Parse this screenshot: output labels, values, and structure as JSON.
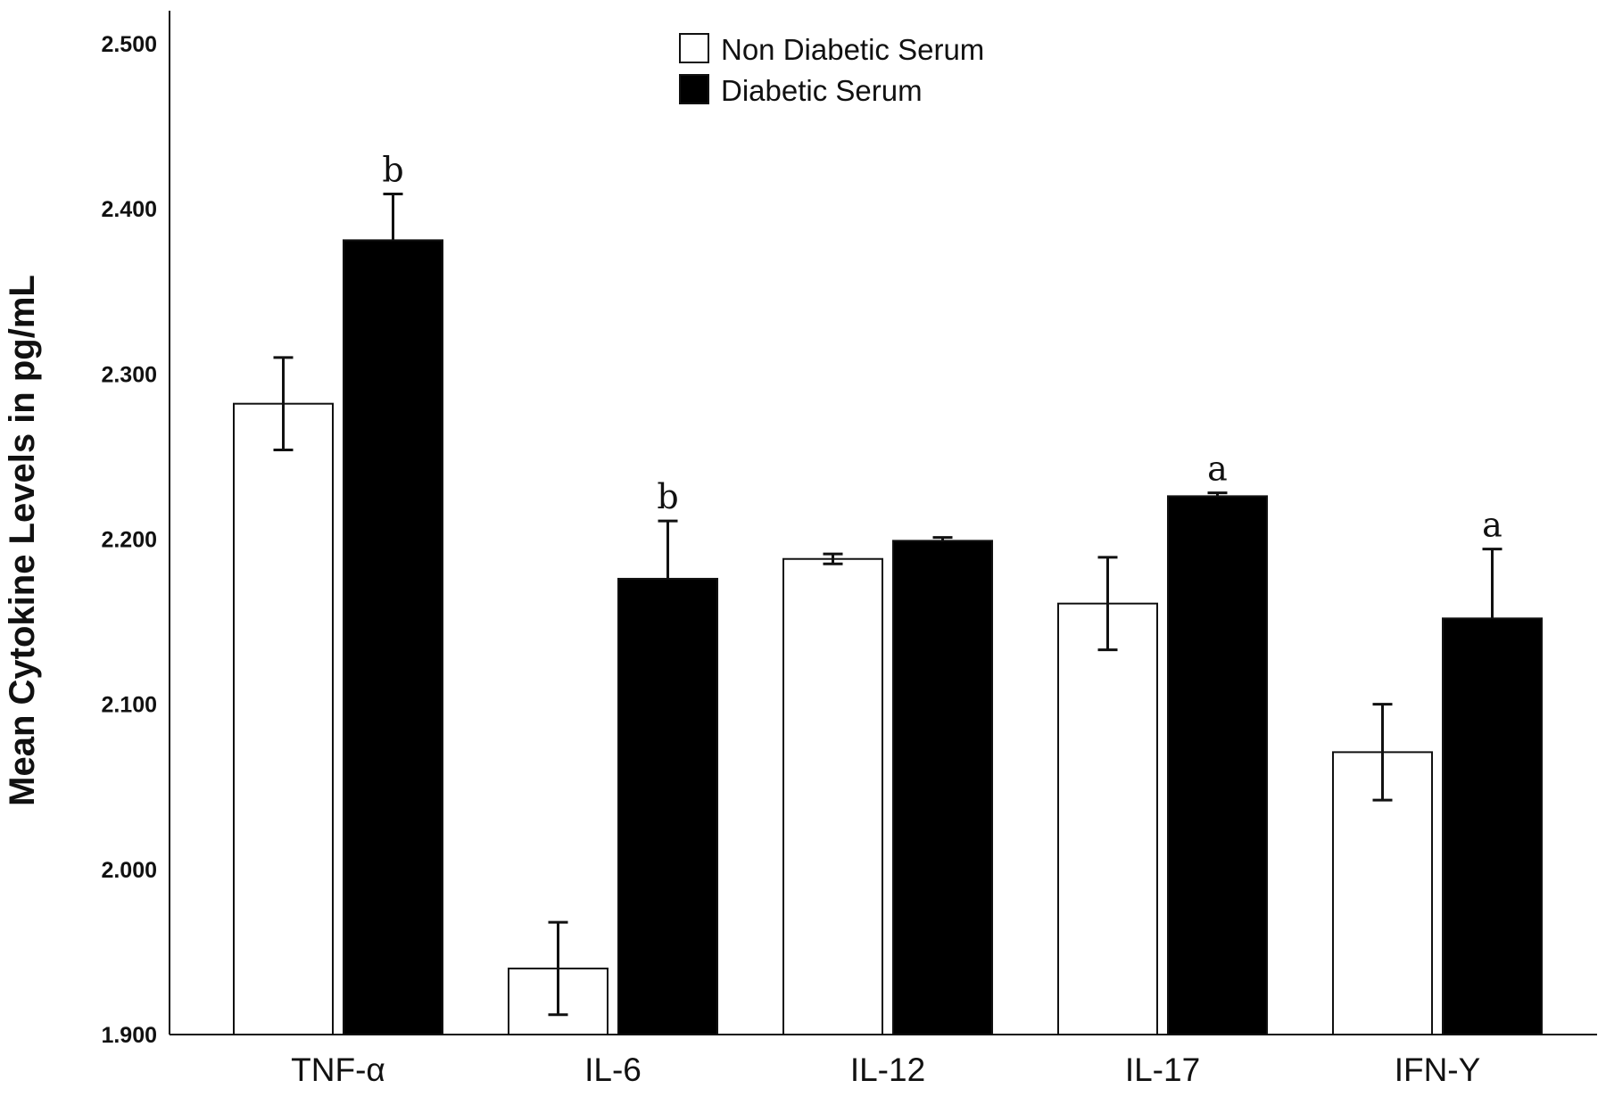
{
  "chart_data": {
    "type": "bar",
    "title": "",
    "xlabel": "",
    "ylabel": "Mean Cytokine Levels in pg/mL",
    "ylim": [
      1.9,
      2.52
    ],
    "yticks": [
      "1.900",
      "2.000",
      "2.100",
      "2.200",
      "2.300",
      "2.400",
      "2.500"
    ],
    "ytick_values": [
      1.9,
      2.0,
      2.1,
      2.2,
      2.3,
      2.4,
      2.5
    ],
    "categories": [
      "TNF-α",
      "IL-6",
      "IL-12",
      "IL-17",
      "IFN-Y"
    ],
    "series": [
      {
        "name": "Non Diabetic Serum",
        "fill": "#ffffff",
        "values": [
          2.282,
          1.94,
          2.188,
          2.161,
          2.071
        ],
        "error": [
          0.028,
          0.028,
          0.003,
          0.028,
          0.029
        ],
        "sig": [
          "",
          "",
          "",
          "",
          ""
        ]
      },
      {
        "name": "Diabetic Serum",
        "fill": "#000000",
        "values": [
          2.381,
          2.176,
          2.199,
          2.226,
          2.152
        ],
        "error": [
          0.028,
          0.035,
          0.002,
          0.002,
          0.042
        ],
        "sig": [
          "b",
          "b",
          "",
          "a",
          "a"
        ]
      }
    ],
    "legend_position": "top-center",
    "grid": false
  }
}
